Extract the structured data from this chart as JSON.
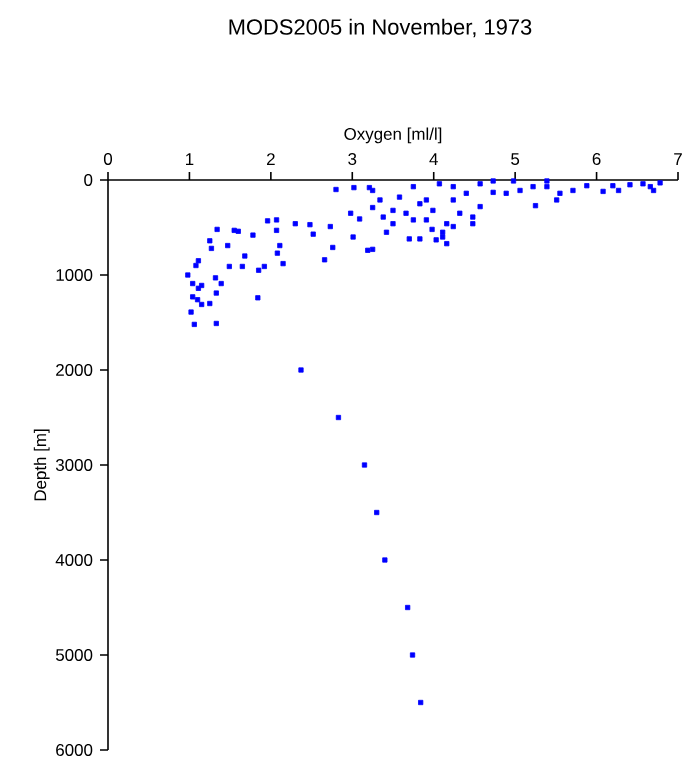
{
  "chart_data": {
    "type": "scatter",
    "title": "MODS2005 in November, 1973",
    "xlabel": "Oxygen [ml/l]",
    "ylabel": "Depth [m]",
    "xlim": [
      0,
      7
    ],
    "xticks": [
      0,
      1,
      2,
      3,
      4,
      5,
      6,
      7
    ],
    "ylim": [
      6000,
      0
    ],
    "yticks": [
      0,
      1000,
      2000,
      3000,
      4000,
      5000,
      6000
    ],
    "marker": "square",
    "series": [
      {
        "color": "#0000ff",
        "x": [
          0.98,
          1.02,
          1.06,
          1.33,
          1.04,
          1.11,
          1.15,
          1.08,
          1.11,
          1.25,
          1.34,
          1.27,
          1.47,
          1.55,
          1.6,
          1.78,
          1.68,
          1.65,
          1.49,
          1.39,
          1.32,
          1.33,
          1.15,
          1.25,
          1.04,
          1.1,
          1.84,
          1.85,
          1.92,
          1.96,
          2.07,
          2.07,
          2.11,
          2.08,
          2.15,
          2.3,
          2.48,
          2.52,
          2.73,
          2.76,
          2.66,
          2.8,
          3.02,
          3.21,
          3.25,
          2.98,
          3.09,
          3.01,
          3.19,
          3.25,
          3.42,
          3.5,
          3.7,
          3.83,
          4.03,
          4.16,
          4.11,
          4.24,
          4.48,
          4.57,
          3.91,
          3.58,
          3.75,
          4.07,
          4.57,
          4.73,
          4.98,
          5.22,
          5.39,
          5.55,
          5.71,
          5.25,
          5.51,
          6.08,
          6.27,
          6.41,
          6.66,
          6.78,
          6.57,
          6.7,
          6.2,
          4.89,
          5.06,
          4.4,
          4.24,
          3.99,
          3.75,
          3.66,
          3.5,
          3.38,
          3.91,
          4.16,
          4.32,
          3.83,
          4.73,
          5.39,
          5.88,
          4.24,
          3.34,
          3.25,
          4.48,
          4.11,
          3.98,
          2.37,
          2.83,
          3.15,
          3.3,
          3.4,
          3.68,
          3.74,
          3.84
        ],
        "values": [
          1000,
          1390,
          1520,
          1510,
          1090,
          1140,
          1110,
          900,
          850,
          640,
          520,
          720,
          690,
          530,
          540,
          580,
          800,
          910,
          910,
          1090,
          1030,
          1190,
          1310,
          1300,
          1230,
          1260,
          1240,
          950,
          910,
          430,
          420,
          530,
          690,
          770,
          880,
          460,
          470,
          570,
          490,
          710,
          840,
          100,
          80,
          80,
          290,
          350,
          410,
          600,
          740,
          730,
          550,
          320,
          620,
          620,
          630,
          670,
          600,
          490,
          390,
          280,
          210,
          180,
          70,
          40,
          40,
          10,
          10,
          70,
          70,
          140,
          110,
          270,
          210,
          120,
          110,
          50,
          70,
          30,
          40,
          110,
          60,
          140,
          110,
          140,
          210,
          320,
          420,
          350,
          460,
          390,
          420,
          460,
          350,
          250,
          130,
          10,
          60,
          70,
          210,
          110,
          460,
          550,
          520,
          2000,
          2500,
          3000,
          3500,
          4000,
          4500,
          5000,
          5500
        ]
      }
    ]
  }
}
